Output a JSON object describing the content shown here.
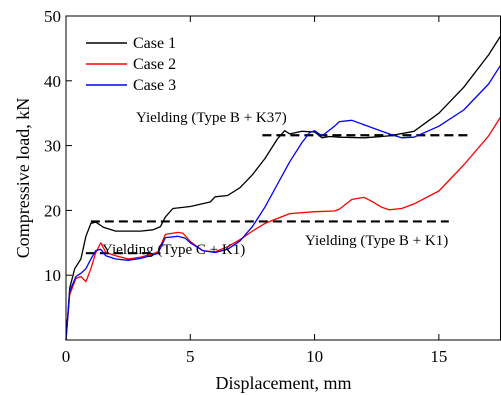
{
  "chart_data": {
    "type": "line",
    "xlabel": "Displacement, mm",
    "ylabel": "Compressive load, kN",
    "xlim": [
      0,
      17.5
    ],
    "ylim": [
      0,
      50
    ],
    "xticks": [
      0,
      5,
      10,
      15
    ],
    "yticks": [
      10,
      20,
      30,
      40,
      50
    ],
    "grid": false,
    "legend": {
      "placement": "top-left"
    },
    "series": [
      {
        "name": "Case 1",
        "color": "#000000",
        "x": [
          0,
          0.15,
          0.35,
          0.6,
          0.8,
          1.0,
          1.2,
          1.5,
          2.0,
          3.0,
          3.5,
          3.8,
          4.0,
          4.3,
          5.0,
          5.8,
          6.0,
          6.5,
          7.0,
          7.5,
          8.0,
          8.5,
          8.8,
          9.0,
          9.5,
          10.0,
          10.3,
          10.6,
          11.0,
          12.0,
          13.0,
          14.0,
          15.0,
          16.0,
          17.0,
          17.5
        ],
        "y": [
          0,
          8,
          11,
          12.5,
          16,
          18,
          18.2,
          17.4,
          16.8,
          16.8,
          17,
          17.5,
          19,
          20.3,
          20.6,
          21.3,
          22.1,
          22.3,
          23.5,
          25.5,
          28,
          31,
          32.3,
          31.8,
          32.2,
          32.1,
          31.2,
          31.4,
          31.3,
          31.2,
          31.5,
          32.2,
          35,
          39,
          44,
          47
        ]
      },
      {
        "name": "Case 2",
        "color": "#ff0000",
        "x": [
          0,
          0.15,
          0.4,
          0.6,
          0.8,
          1.0,
          1.2,
          1.4,
          1.6,
          2.0,
          2.5,
          3.0,
          3.4,
          3.7,
          4.0,
          4.5,
          4.7,
          5.0,
          5.5,
          6.0,
          6.5,
          7.0,
          7.5,
          8.0,
          9.0,
          10.0,
          10.8,
          11.0,
          11.5,
          12.0,
          12.3,
          12.7,
          13.0,
          13.5,
          14.0,
          15.0,
          16.0,
          17.0,
          17.5
        ],
        "y": [
          0,
          7,
          9.5,
          9.8,
          9,
          11,
          13.5,
          15,
          13.5,
          13,
          12.5,
          12.8,
          13.2,
          13.6,
          16.3,
          16.6,
          16.5,
          15.2,
          13.8,
          13.6,
          14.4,
          15.5,
          16.8,
          18,
          19.5,
          19.8,
          19.9,
          20.2,
          21.7,
          22,
          21.4,
          20.5,
          20.1,
          20.3,
          21,
          23,
          27,
          31.5,
          34.5
        ]
      },
      {
        "name": "Case 3",
        "color": "#0000ff",
        "x": [
          0,
          0.15,
          0.4,
          0.6,
          0.8,
          1.0,
          1.2,
          1.4,
          1.6,
          2.0,
          2.5,
          3.0,
          3.4,
          3.7,
          4.0,
          4.5,
          4.8,
          5.0,
          5.5,
          6.0,
          6.5,
          7.0,
          7.5,
          8.0,
          8.5,
          9.0,
          9.5,
          9.8,
          10.0,
          10.3,
          10.8,
          11.0,
          11.5,
          12.0,
          12.5,
          13.0,
          13.5,
          14.0,
          15.0,
          16.0,
          17.0,
          17.5
        ],
        "y": [
          0,
          7.5,
          9.8,
          10.3,
          11,
          12.5,
          13.8,
          14,
          13,
          12.5,
          12.3,
          12.6,
          13,
          13.4,
          15.8,
          16,
          15.7,
          15,
          13.8,
          13.5,
          14,
          15.3,
          17.5,
          20.5,
          24,
          27.5,
          30.5,
          32,
          32.3,
          31.5,
          33,
          33.7,
          33.9,
          33.2,
          32.5,
          31.8,
          31.2,
          31.3,
          33,
          35.5,
          39.5,
          42.5
        ]
      }
    ],
    "reference_lines": [
      {
        "x": [
          7.9,
          16.3
        ],
        "y": 31.6,
        "style": "dashed"
      },
      {
        "x": [
          1.0,
          15.4
        ],
        "y": 18.3,
        "style": "dashed"
      },
      {
        "x": [
          0.8,
          3.8
        ],
        "y": 13.4,
        "style": "dashed"
      }
    ],
    "annotations": [
      {
        "text": "Yielding (Type B + K37)"
      },
      {
        "text": "Yielding (Type B + K1)"
      },
      {
        "text": "Yielding (Type C + K1)"
      }
    ]
  }
}
